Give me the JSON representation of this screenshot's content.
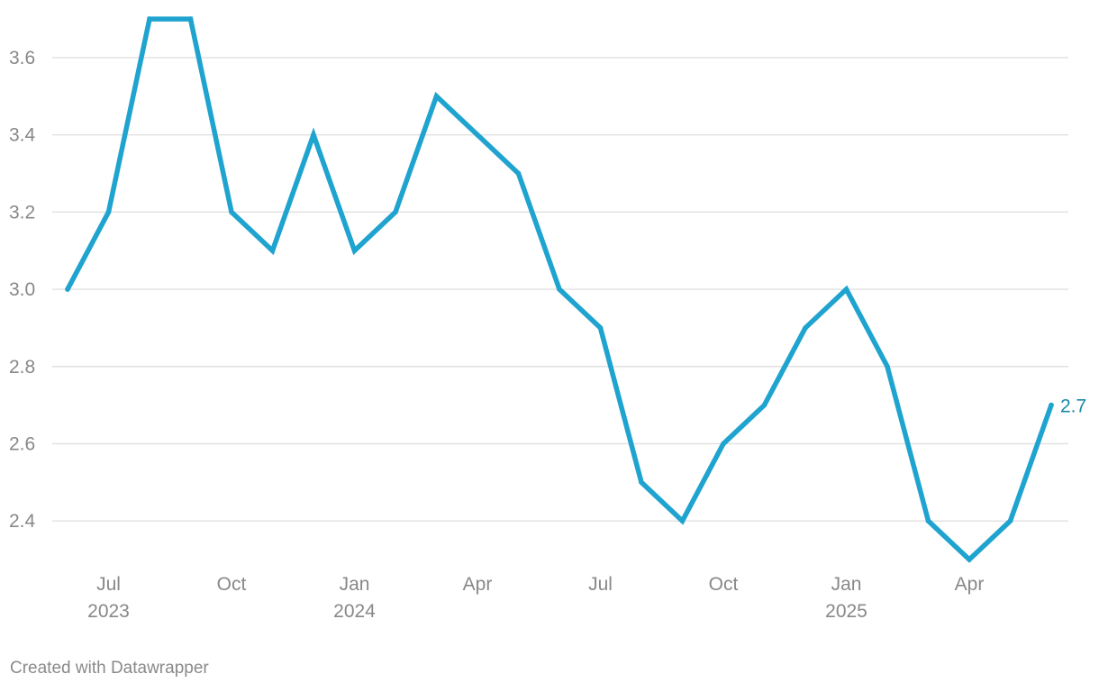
{
  "chart_data": {
    "type": "line",
    "x": [
      "2023-06",
      "2023-07",
      "2023-08",
      "2023-09",
      "2023-10",
      "2023-11",
      "2023-12",
      "2024-01",
      "2024-02",
      "2024-03",
      "2024-04",
      "2024-05",
      "2024-06",
      "2024-07",
      "2024-08",
      "2024-09",
      "2024-10",
      "2024-11",
      "2024-12",
      "2025-01",
      "2025-02",
      "2025-03",
      "2025-04",
      "2025-05",
      "2025-06"
    ],
    "series": [
      {
        "values": [
          3.0,
          3.2,
          3.7,
          3.7,
          3.2,
          3.1,
          3.4,
          3.1,
          3.2,
          3.5,
          3.4,
          3.3,
          3.0,
          2.9,
          2.5,
          2.4,
          2.6,
          2.7,
          2.9,
          3.0,
          2.8,
          2.4,
          2.3,
          2.4,
          2.7
        ],
        "color": "#1fa3cf"
      }
    ],
    "y_ticks": [
      "2.4",
      "2.6",
      "2.8",
      "3.0",
      "3.2",
      "3.4",
      "3.6"
    ],
    "x_ticks": [
      {
        "month": "Jul",
        "year": "2023"
      },
      {
        "month": "Oct",
        "year": ""
      },
      {
        "month": "Jan",
        "year": "2024"
      },
      {
        "month": "Apr",
        "year": ""
      },
      {
        "month": "Jul",
        "year": ""
      },
      {
        "month": "Oct",
        "year": ""
      },
      {
        "month": "Jan",
        "year": "2025"
      },
      {
        "month": "Apr",
        "year": ""
      }
    ],
    "end_label": "2.7",
    "end_label_color": "#1a8aa8",
    "ylim": [
      2.3,
      3.7
    ],
    "grid": true,
    "title": "",
    "xlabel": "",
    "ylabel": ""
  },
  "footer": {
    "credit": "Created with Datawrapper"
  }
}
